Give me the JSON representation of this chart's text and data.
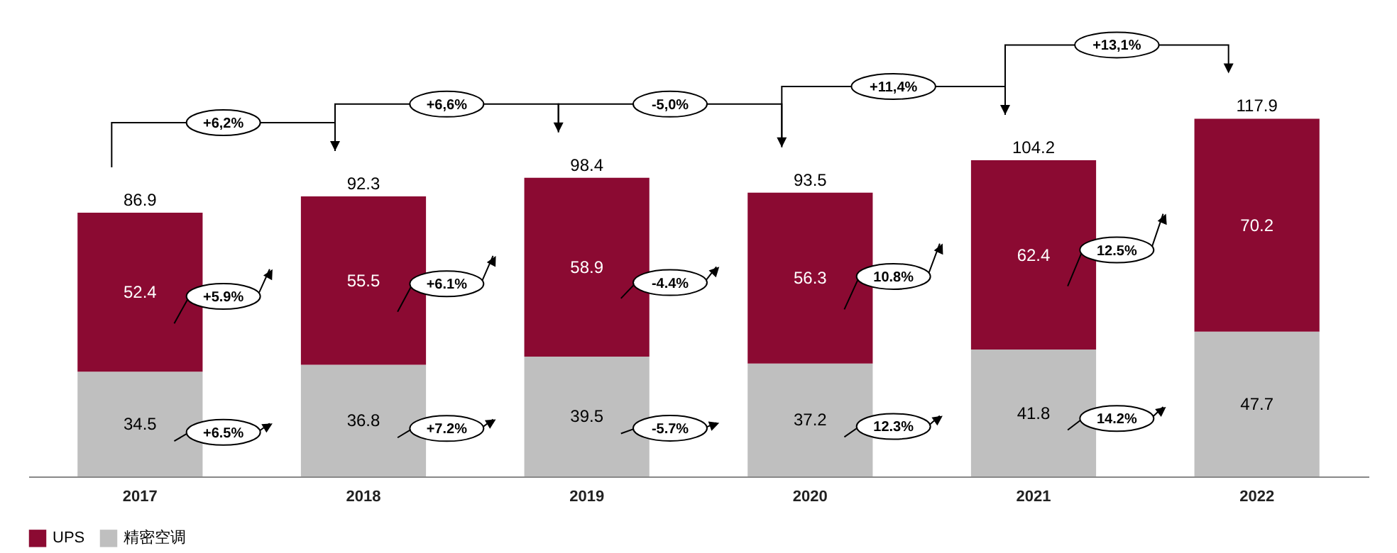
{
  "chart_data": {
    "type": "bar",
    "stacked": true,
    "categories": [
      "2017",
      "2018",
      "2019",
      "2020",
      "2021",
      "2022"
    ],
    "series": [
      {
        "name": "精密空调",
        "color": "#bfbfbf",
        "values": [
          34.5,
          36.8,
          39.5,
          37.2,
          41.8,
          47.7
        ]
      },
      {
        "name": "UPS",
        "color": "#8b0a32",
        "values": [
          52.4,
          55.5,
          58.9,
          56.3,
          62.4,
          70.2
        ]
      }
    ],
    "data_labels": true,
    "totals": [
      "86.9",
      "92.3",
      "98.4",
      "93.5",
      "104.2",
      "117.9"
    ],
    "legend": "bottom",
    "annotations": [
      "+6,2%",
      "+6,6%",
      "-5,0%",
      "+11,4%",
      "+13,1%",
      "+5.9%",
      "+6.1%",
      "-4.4%",
      "10.8%",
      "12.5%",
      "+6.5%",
      "+7.2%",
      "-5.7%",
      "12.3%",
      "14.2%"
    ]
  }
}
